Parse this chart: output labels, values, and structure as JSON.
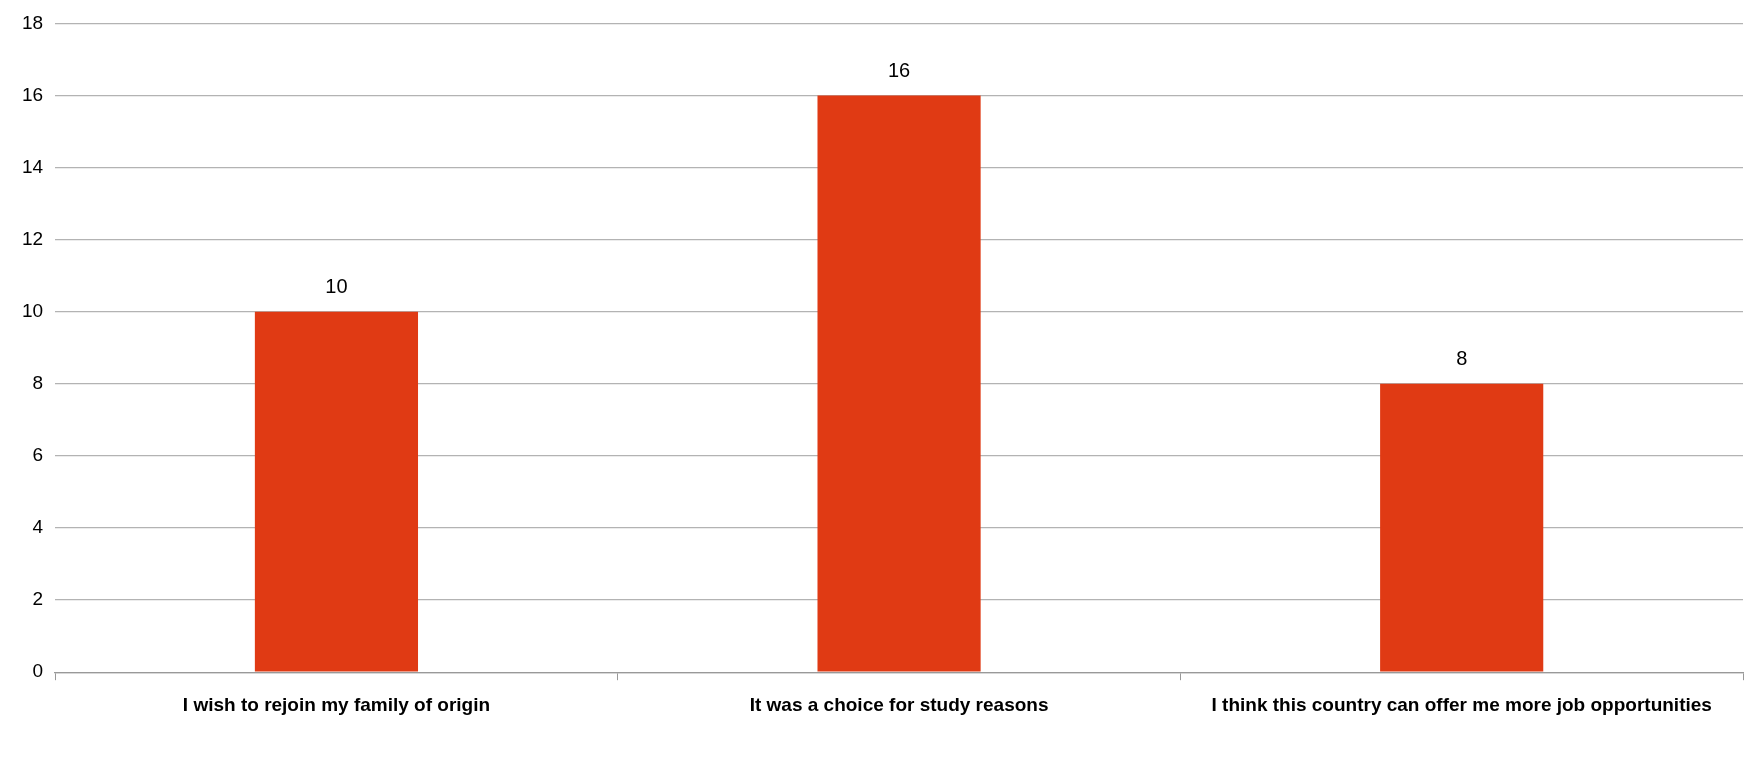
{
  "chart_data": {
    "type": "bar",
    "categories": [
      "I wish to rejoin my family of origin",
      "It was a choice for study reasons",
      "I think this country can offer me more job opportunities"
    ],
    "values": [
      10,
      16,
      8
    ],
    "color": "#e03a14",
    "ylim": [
      0,
      18
    ],
    "yticks": [
      0,
      2,
      4,
      6,
      8,
      10,
      12,
      14,
      16,
      18
    ],
    "grid": "y",
    "data_labels": true,
    "legend": false
  }
}
